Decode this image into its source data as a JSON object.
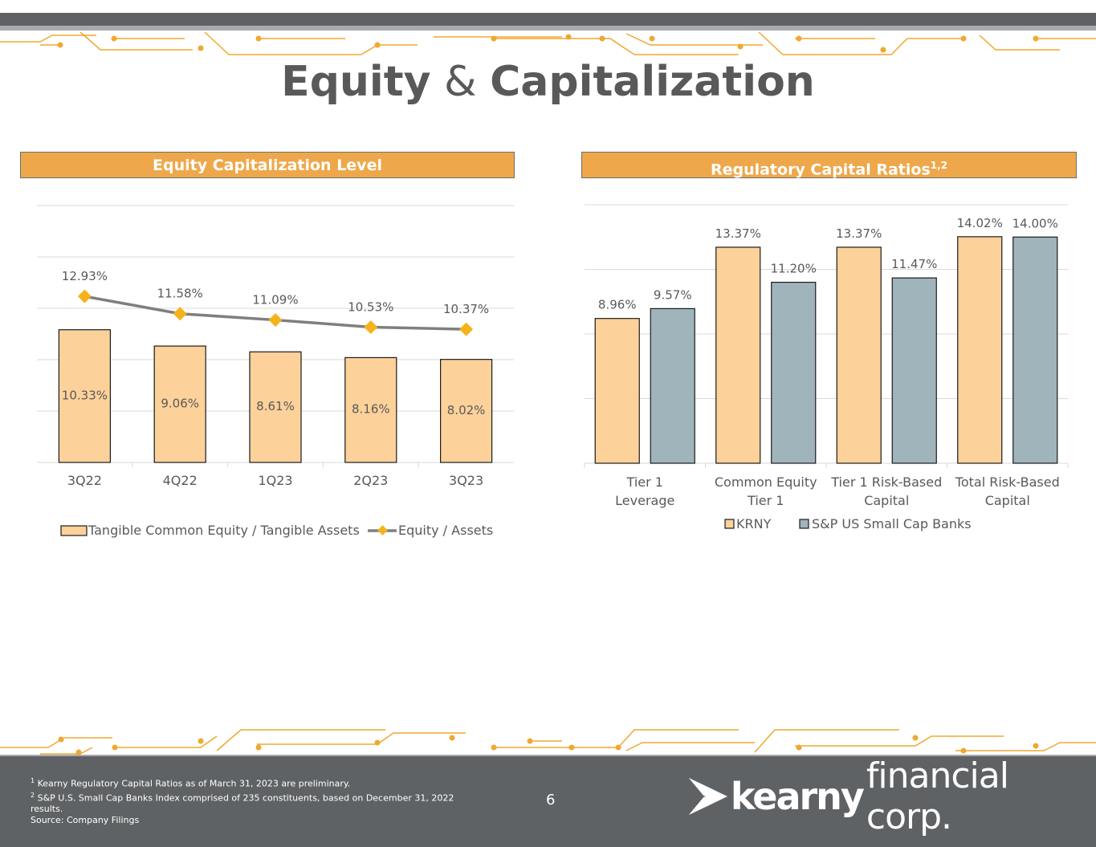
{
  "title": {
    "part1": "Equity",
    "amp": "&",
    "part2": "Capitalization"
  },
  "left_panel": {
    "header": "Equity Capitalization Level"
  },
  "right_panel": {
    "header": "Regulatory Capital Ratios",
    "header_sup": "1,2"
  },
  "colors": {
    "accent": "#eea84b",
    "bar_orange": "#fdd19a",
    "bar_gray": "#a0b4bc",
    "line_gray": "#7f7f7f",
    "marker": "#f5b21b",
    "dark": "#5f6264"
  },
  "chart_data": [
    {
      "type": "bar",
      "categories": [
        "3Q22",
        "4Q22",
        "1Q23",
        "2Q23",
        "3Q23"
      ],
      "series": [
        {
          "name": "Tangible Common Equity / Tangible Assets",
          "values": [
            10.33,
            9.06,
            8.61,
            8.16,
            8.02
          ],
          "labels": [
            "10.33%",
            "9.06%",
            "8.61%",
            "8.16%",
            "8.02%"
          ]
        },
        {
          "name": "Equity / Assets",
          "type": "line",
          "values": [
            12.93,
            11.58,
            11.09,
            10.53,
            10.37
          ],
          "labels": [
            "12.93%",
            "11.58%",
            "11.09%",
            "10.53%",
            "10.37%"
          ]
        }
      ],
      "ylim": [
        0,
        20
      ],
      "grid": true,
      "legend": "bottom"
    },
    {
      "type": "bar",
      "categories": [
        "Tier 1|Leverage",
        "Common Equity|Tier 1",
        "Tier 1 Risk-Based|Capital",
        "Total Risk-Based|Capital"
      ],
      "series": [
        {
          "name": "KRNY",
          "values": [
            8.96,
            13.37,
            13.37,
            14.02
          ],
          "labels": [
            "8.96%",
            "13.37%",
            "13.37%",
            "14.02%"
          ]
        },
        {
          "name": "S&P US Small Cap Banks",
          "values": [
            9.57,
            11.2,
            11.47,
            14.0
          ],
          "labels": [
            "9.57%",
            "11.20%",
            "11.47%",
            "14.00%"
          ]
        }
      ],
      "ylim": [
        0,
        16
      ],
      "grid": true,
      "legend": "bottom"
    }
  ],
  "footer": {
    "note1_sup": "1",
    "note1": "Kearny Regulatory Capital Ratios as of March 31, 2023 are preliminary.",
    "note2_sup": "2",
    "note2": "S&P U.S. Small Cap Banks Index comprised of 235 constituents, based on December 31, 2022 results.",
    "source": "Source: Company Filings",
    "page": "6",
    "logo_bold": "kearny",
    "logo_light": "financial corp."
  }
}
